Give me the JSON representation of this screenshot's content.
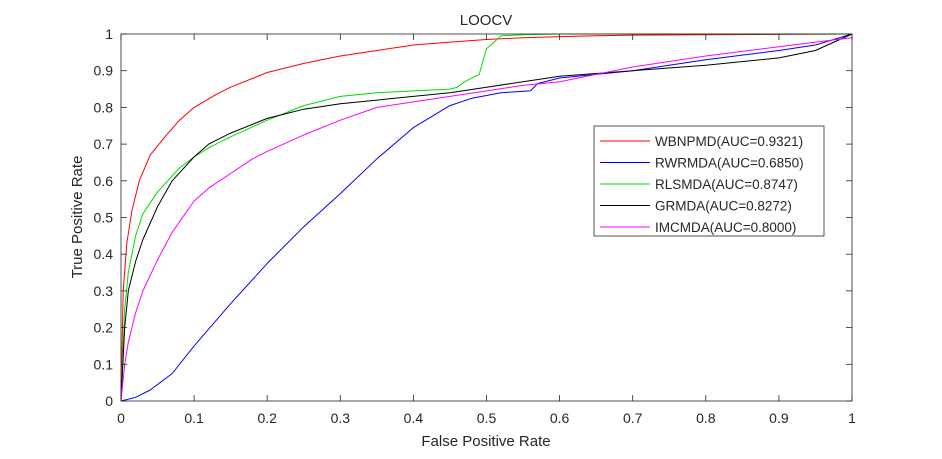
{
  "chart_data": {
    "type": "line",
    "title": "LOOCV",
    "xlabel": "False Positive Rate",
    "ylabel": "True Positive Rate",
    "xlim": [
      0,
      1
    ],
    "ylim": [
      0,
      1
    ],
    "xticks": [
      0,
      0.1,
      0.2,
      0.3,
      0.4,
      0.5,
      0.6,
      0.7,
      0.8,
      0.9,
      1
    ],
    "yticks": [
      0,
      0.1,
      0.2,
      0.3,
      0.4,
      0.5,
      0.6,
      0.7,
      0.8,
      0.9,
      1
    ],
    "xtick_labels": [
      "0",
      "0.1",
      "0.2",
      "0.3",
      "0.4",
      "0.5",
      "0.6",
      "0.7",
      "0.8",
      "0.9",
      "1"
    ],
    "ytick_labels": [
      "0",
      "0.1",
      "0.2",
      "0.3",
      "0.4",
      "0.5",
      "0.6",
      "0.7",
      "0.8",
      "0.9",
      "1"
    ],
    "grid": false,
    "legend_position": "right",
    "series": [
      {
        "name": "WBNPMD(AUC=0.9321)",
        "color": "#ff0000",
        "x": [
          0,
          0.003,
          0.008,
          0.015,
          0.025,
          0.04,
          0.06,
          0.08,
          0.1,
          0.13,
          0.15,
          0.2,
          0.25,
          0.3,
          0.35,
          0.4,
          0.45,
          0.5,
          0.55,
          0.6,
          0.65,
          0.7,
          0.8,
          0.9,
          1
        ],
        "y": [
          0,
          0.3,
          0.43,
          0.52,
          0.6,
          0.67,
          0.72,
          0.765,
          0.8,
          0.835,
          0.855,
          0.895,
          0.92,
          0.94,
          0.955,
          0.97,
          0.978,
          0.985,
          0.99,
          0.993,
          0.995,
          0.997,
          0.998,
          0.999,
          1
        ]
      },
      {
        "name": "RWRMDA(AUC=0.6850)",
        "color": "#0000ff",
        "x": [
          0,
          0.02,
          0.04,
          0.07,
          0.1,
          0.15,
          0.2,
          0.25,
          0.3,
          0.35,
          0.4,
          0.45,
          0.48,
          0.52,
          0.56,
          0.57,
          0.6,
          0.7,
          0.8,
          0.9,
          0.95,
          1
        ],
        "y": [
          0,
          0.01,
          0.03,
          0.075,
          0.15,
          0.265,
          0.375,
          0.475,
          0.565,
          0.66,
          0.745,
          0.805,
          0.825,
          0.84,
          0.845,
          0.865,
          0.88,
          0.9,
          0.93,
          0.955,
          0.97,
          1
        ]
      },
      {
        "name": "RLSMDA(AUC=0.8747)",
        "color": "#00dd00",
        "x": [
          0,
          0.005,
          0.01,
          0.02,
          0.03,
          0.05,
          0.08,
          0.1,
          0.12,
          0.15,
          0.2,
          0.25,
          0.3,
          0.35,
          0.4,
          0.45,
          0.46,
          0.47,
          0.49,
          0.5,
          0.52,
          0.55,
          0.6,
          0.7,
          0.8,
          0.9,
          1
        ],
        "y": [
          0,
          0.25,
          0.35,
          0.45,
          0.51,
          0.57,
          0.635,
          0.665,
          0.69,
          0.72,
          0.765,
          0.805,
          0.83,
          0.84,
          0.845,
          0.85,
          0.855,
          0.87,
          0.89,
          0.96,
          0.995,
          0.998,
          1,
          1,
          1,
          1,
          1
        ]
      },
      {
        "name": "GRMDA(AUC=0.8272)",
        "color": "#000000",
        "x": [
          0,
          0.005,
          0.01,
          0.02,
          0.03,
          0.05,
          0.07,
          0.1,
          0.12,
          0.15,
          0.2,
          0.25,
          0.3,
          0.35,
          0.4,
          0.45,
          0.5,
          0.55,
          0.6,
          0.7,
          0.8,
          0.9,
          0.95,
          1
        ],
        "y": [
          0,
          0.2,
          0.3,
          0.38,
          0.44,
          0.53,
          0.6,
          0.665,
          0.7,
          0.73,
          0.77,
          0.795,
          0.81,
          0.82,
          0.83,
          0.84,
          0.855,
          0.87,
          0.885,
          0.9,
          0.915,
          0.935,
          0.955,
          1
        ]
      },
      {
        "name": "IMCMDA(AUC=0.8000)",
        "color": "#ff00ff",
        "x": [
          0,
          0.005,
          0.01,
          0.02,
          0.03,
          0.05,
          0.07,
          0.1,
          0.12,
          0.15,
          0.18,
          0.2,
          0.25,
          0.3,
          0.35,
          0.4,
          0.45,
          0.5,
          0.55,
          0.6,
          0.7,
          0.8,
          0.9,
          0.95,
          1
        ],
        "y": [
          0,
          0.1,
          0.16,
          0.24,
          0.3,
          0.385,
          0.46,
          0.545,
          0.58,
          0.62,
          0.66,
          0.68,
          0.725,
          0.765,
          0.8,
          0.815,
          0.83,
          0.845,
          0.86,
          0.87,
          0.91,
          0.94,
          0.965,
          0.978,
          0.99
        ]
      }
    ]
  }
}
